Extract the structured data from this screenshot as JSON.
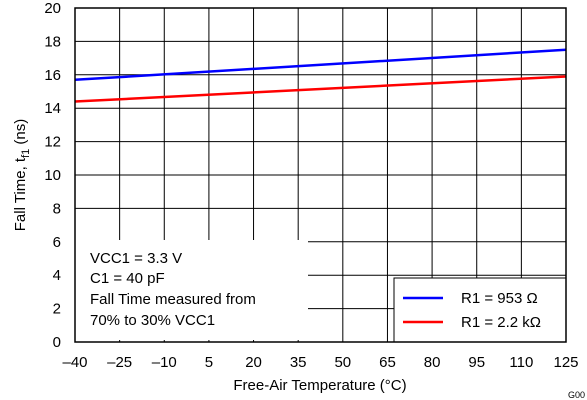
{
  "chart_data": {
    "type": "line",
    "xlabel": "Free-Air Temperature (°C)",
    "ylabel_main": "Fall Time, t",
    "ylabel_sub": "f1",
    "ylabel_unit": " (ns)",
    "xlim": [
      -40,
      125
    ],
    "ylim": [
      0,
      20
    ],
    "x_ticks": [
      -40,
      -25,
      -10,
      5,
      20,
      35,
      50,
      65,
      80,
      95,
      110,
      125
    ],
    "x_tick_labels": [
      "–40",
      "–25",
      "–10",
      "5",
      "20",
      "35",
      "50",
      "65",
      "80",
      "95",
      "110",
      "125"
    ],
    "y_ticks": [
      0,
      2,
      4,
      6,
      8,
      10,
      12,
      14,
      16,
      18,
      20
    ],
    "y_tick_labels": [
      "0",
      "2",
      "4",
      "6",
      "8",
      "10",
      "12",
      "14",
      "16",
      "18",
      "20"
    ],
    "grid": true,
    "legend_position": "bottom-right",
    "series": [
      {
        "name": "R1 = 953 Ω",
        "color": "#0000ff",
        "x": [
          -40,
          125
        ],
        "y": [
          15.7,
          17.5
        ]
      },
      {
        "name": "R1 = 2.2 kΩ",
        "color": "#ff0000",
        "x": [
          -40,
          125
        ],
        "y": [
          14.4,
          15.9
        ]
      }
    ],
    "annotation_lines": [
      "VCC1 = 3.3 V",
      "C1 = 40 pF",
      "Fall Time measured from",
      "70% to 30% VCC1"
    ],
    "figure_id": "G00"
  }
}
